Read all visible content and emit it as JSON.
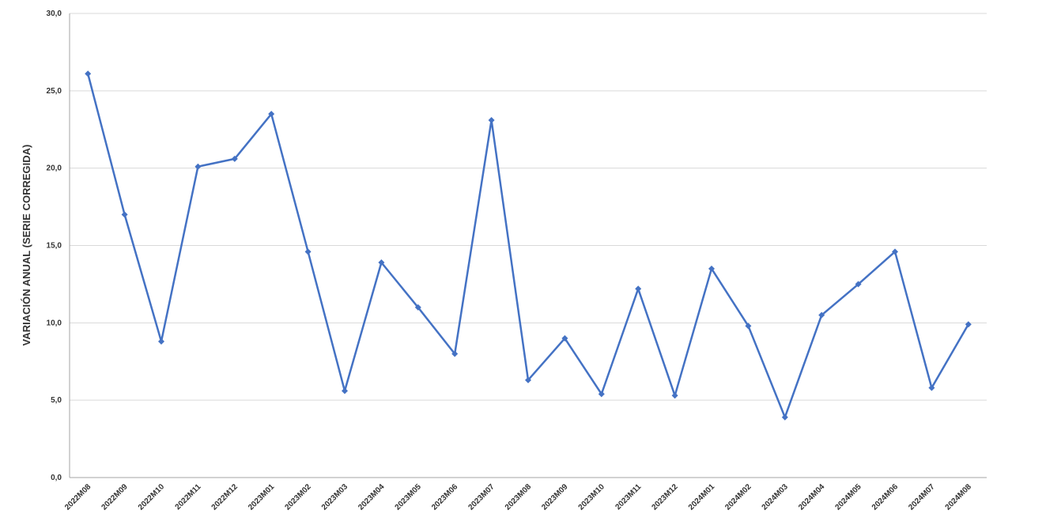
{
  "chart_data": {
    "type": "line",
    "title": "",
    "xlabel": "",
    "ylabel": "VARIACIÓN ANUAL (SERIE CORREGIDA)",
    "ylim": [
      0,
      30
    ],
    "y_ticks": [
      "0,0",
      "5,0",
      "10,0",
      "15,0",
      "20,0",
      "25,0",
      "30,0"
    ],
    "y_tick_values": [
      0,
      5,
      10,
      15,
      20,
      25,
      30
    ],
    "grid": true,
    "legend": "none",
    "categories": [
      "2022M08",
      "2022M09",
      "2022M10",
      "2022M11",
      "2022M12",
      "2023M01",
      "2023M02",
      "2023M03",
      "2023M04",
      "2023M05",
      "2023M06",
      "2023M07",
      "2023M08",
      "2023M09",
      "2023M10",
      "2023M11",
      "2023M12",
      "2024M01",
      "2024M02",
      "2024M03",
      "2024M04",
      "2024M05",
      "2024M06",
      "2024M07",
      "2024M08"
    ],
    "series": [
      {
        "color": "#4472C4",
        "marker": "diamond",
        "values": [
          26.1,
          17.0,
          8.8,
          20.1,
          20.6,
          23.5,
          14.6,
          5.6,
          13.9,
          11.0,
          8.0,
          23.1,
          6.3,
          9.0,
          5.4,
          12.2,
          5.3,
          13.5,
          9.8,
          3.9,
          10.5,
          12.5,
          14.6,
          5.8,
          9.9
        ]
      }
    ]
  }
}
